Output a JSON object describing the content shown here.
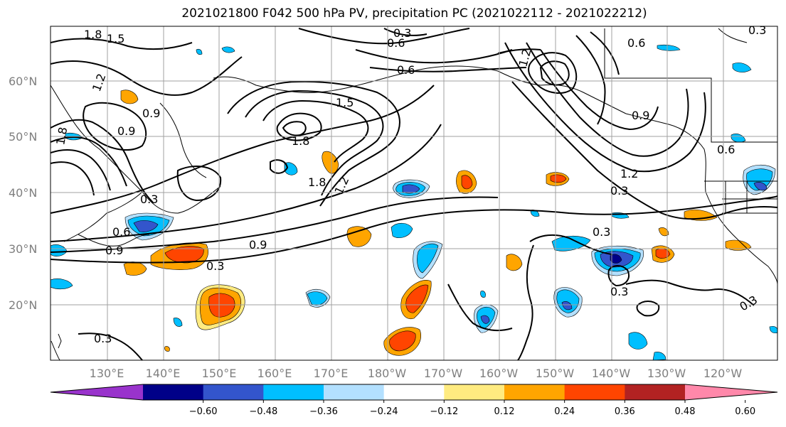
{
  "title": "2021021800 F042 500 hPa PV, precipitation PC (2021022112 - 2021022212)",
  "lat_labels": [
    "60°N",
    "50°N",
    "40°N",
    "30°N",
    "20°N"
  ],
  "lon_labels": [
    "130°E",
    "140°E",
    "150°E",
    "160°E",
    "170°E",
    "180°W",
    "170°W",
    "160°W",
    "150°W",
    "140°W",
    "130°W",
    "120°W"
  ],
  "colorbar": {
    "colors": [
      "#9933cc",
      "#000088",
      "#3355cc",
      "#00bfff",
      "#b3e0ff",
      "#ffffff",
      "#ffeb80",
      "#ffa500",
      "#ff4500",
      "#b22222",
      "#ff88aa"
    ],
    "ticks": [
      "−0.60",
      "−0.48",
      "−0.36",
      "−0.24",
      "−0.12",
      "0.12",
      "0.24",
      "0.36",
      "0.48",
      "0.60"
    ]
  },
  "contour_labels": [
    "1.8",
    "1.5",
    "1.2",
    "0.9",
    "0.9",
    "1.8",
    "0.3",
    "0.6",
    "0.6",
    "1.5",
    "1.8",
    "1.8",
    "1.2",
    "0.3",
    "0.9",
    "0.9",
    "0.3",
    "0.3",
    "0.3",
    "0.3",
    "0.3",
    "0.3",
    "0.6",
    "0.6",
    "0.6",
    "1.2",
    "1.2",
    "0.3",
    "0.9"
  ],
  "map_colors": {
    "positive": [
      "#ffeb80",
      "#ffa500",
      "#ff4500"
    ],
    "negative": [
      "#b3e0ff",
      "#00bfff",
      "#3355cc",
      "#000088"
    ]
  }
}
